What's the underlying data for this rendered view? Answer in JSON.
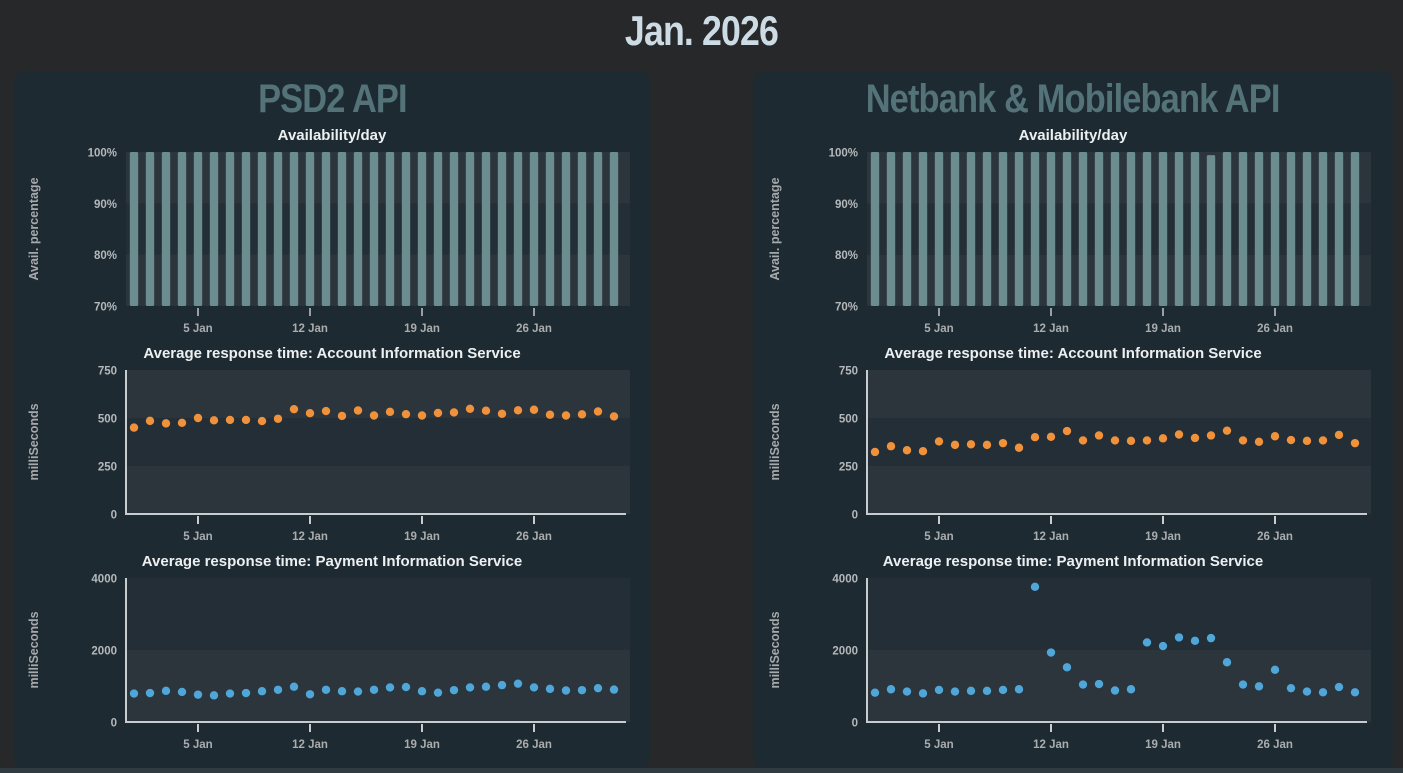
{
  "page_title": "Jan. 2026",
  "colors": {
    "page_bg": "#262829",
    "panel_bg": "#1e2a31",
    "main_title": "#cddce4",
    "panel_title": "#537379",
    "chart_title": "#edf0f1",
    "bar": "#6b8d90",
    "orange": "#F0913C",
    "blue": "#4FA6D8",
    "axis_line": "#c9ccce",
    "tick_label": "#b4b8ba",
    "x_label": "#a9adaf",
    "y_axis_title": "#a6aaac",
    "band_light": "#2c353c",
    "band_dark": "#242e36"
  },
  "panels": [
    {
      "title": "PSD2 API"
    },
    {
      "title": "Netbank & Mobilebank API"
    }
  ],
  "x_axis": {
    "n_days": 31,
    "unit": "day of January",
    "ticks": [
      {
        "day": 5,
        "label": "5 Jan"
      },
      {
        "day": 12,
        "label": "12 Jan"
      },
      {
        "day": 19,
        "label": "19 Jan"
      },
      {
        "day": 26,
        "label": "26 Jan"
      }
    ]
  },
  "chart_data": [
    {
      "panel": "PSD2 API",
      "type": "bar",
      "title": "Availability/day",
      "ylabel": "Avail. percentage",
      "ylim": [
        70,
        100
      ],
      "yticks": [
        {
          "value": 70,
          "label": "70%"
        },
        {
          "value": 80,
          "label": "80%"
        },
        {
          "value": 90,
          "label": "90%"
        },
        {
          "value": 100,
          "label": "100%"
        }
      ],
      "values": [
        100,
        100,
        100,
        100,
        100,
        100,
        100,
        100,
        100,
        100,
        100,
        100,
        100,
        100,
        100,
        100,
        100,
        100,
        100,
        100,
        100,
        100,
        100,
        100,
        100,
        100,
        100,
        100,
        100,
        100,
        100
      ]
    },
    {
      "panel": "PSD2 API",
      "type": "scatter",
      "title": "Average response time: Account Information Service",
      "ylabel": "milliSeconds",
      "color": "#F0913C",
      "ylim": [
        0,
        750
      ],
      "yticks": [
        {
          "value": 0,
          "label": "0"
        },
        {
          "value": 250,
          "label": "250"
        },
        {
          "value": 500,
          "label": "500"
        },
        {
          "value": 750,
          "label": "750"
        }
      ],
      "values": [
        450,
        485,
        472,
        475,
        500,
        488,
        490,
        490,
        484,
        496,
        546,
        525,
        536,
        511,
        539,
        513,
        532,
        520,
        513,
        526,
        529,
        548,
        538,
        522,
        540,
        543,
        517,
        513,
        519,
        534,
        508
      ]
    },
    {
      "panel": "PSD2 API",
      "type": "scatter",
      "title": "Average response time: Payment Information Service",
      "ylabel": "milliSeconds",
      "color": "#4FA6D8",
      "ylim": [
        0,
        4000
      ],
      "yticks": [
        {
          "value": 0,
          "label": "0"
        },
        {
          "value": 2000,
          "label": "2000"
        },
        {
          "value": 4000,
          "label": "4000"
        }
      ],
      "values": [
        790,
        805,
        865,
        835,
        760,
        740,
        790,
        805,
        855,
        895,
        980,
        770,
        895,
        855,
        845,
        895,
        960,
        970,
        855,
        815,
        885,
        960,
        980,
        1025,
        1065,
        960,
        920,
        875,
        885,
        940,
        900
      ]
    },
    {
      "panel": "Netbank & Mobilebank API",
      "type": "bar",
      "title": "Availability/day",
      "ylabel": "Avail. percentage",
      "ylim": [
        70,
        100
      ],
      "yticks": [
        {
          "value": 70,
          "label": "70%"
        },
        {
          "value": 80,
          "label": "80%"
        },
        {
          "value": 90,
          "label": "90%"
        },
        {
          "value": 100,
          "label": "100%"
        }
      ],
      "values": [
        100,
        100,
        100,
        100,
        100,
        100,
        100,
        100,
        100,
        100,
        100,
        100,
        100,
        100,
        100,
        100,
        100,
        100,
        100,
        100,
        100,
        99.4,
        100,
        100,
        100,
        100,
        100,
        100,
        100,
        100,
        100
      ]
    },
    {
      "panel": "Netbank & Mobilebank API",
      "type": "scatter",
      "title": "Average response time: Account Information Service",
      "ylabel": "milliSeconds",
      "color": "#F0913C",
      "ylim": [
        0,
        750
      ],
      "yticks": [
        {
          "value": 0,
          "label": "0"
        },
        {
          "value": 250,
          "label": "250"
        },
        {
          "value": 500,
          "label": "500"
        },
        {
          "value": 750,
          "label": "750"
        }
      ],
      "values": [
        323,
        353,
        332,
        327,
        378,
        360,
        363,
        360,
        369,
        345,
        400,
        402,
        432,
        383,
        409,
        383,
        381,
        383,
        394,
        414,
        396,
        409,
        434,
        383,
        376,
        405,
        385,
        381,
        383,
        412,
        369
      ]
    },
    {
      "panel": "Netbank & Mobilebank API",
      "type": "scatter",
      "title": "Average response time: Payment Information Service",
      "ylabel": "milliSeconds",
      "color": "#4FA6D8",
      "ylim": [
        0,
        4000
      ],
      "yticks": [
        {
          "value": 0,
          "label": "0"
        },
        {
          "value": 2000,
          "label": "2000"
        },
        {
          "value": 4000,
          "label": "4000"
        }
      ],
      "values": [
        815,
        910,
        845,
        795,
        890,
        845,
        865,
        865,
        890,
        910,
        3755,
        1930,
        1520,
        1040,
        1055,
        875,
        910,
        2210,
        2110,
        2350,
        2255,
        2330,
        1660,
        1040,
        990,
        1450,
        940,
        845,
        825,
        970,
        825
      ]
    }
  ]
}
